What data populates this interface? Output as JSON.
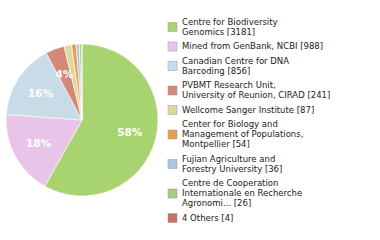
{
  "chart_data": {
    "type": "pie",
    "categories": [
      "Centre for Biodiversity\nGenomics [3181]",
      "Mined from GenBank, NCBI [988]",
      "Canadian Centre for DNA\nBarcoding [856]",
      "PVBMT Research Unit,\nUniversity of Reunion, CIRAD [241]",
      "Wellcome Sanger Institute [87]",
      "Center for Biology and\nManagement of Populations,\nMontpellier [54]",
      "Fujian Agriculture and\nForestry University [36]",
      "Centre de Cooperation\nInternationale en Recherche\nAgronomi... [26]",
      "4 Others [4]"
    ],
    "values": [
      58,
      18,
      16,
      4,
      1.59,
      0.99,
      0.66,
      0.48,
      0.07
    ],
    "value_labels": [
      "58%",
      "18%",
      "16%",
      "4%",
      null,
      null,
      null,
      null,
      null
    ],
    "colors": [
      "#a8d46f",
      "#e8c4e8",
      "#c8dce8",
      "#d48878",
      "#dcd8a0",
      "#e8a050",
      "#a8c8e0",
      "#a8cc80",
      "#cc7060"
    ],
    "data_labels": true,
    "legend": "right"
  }
}
